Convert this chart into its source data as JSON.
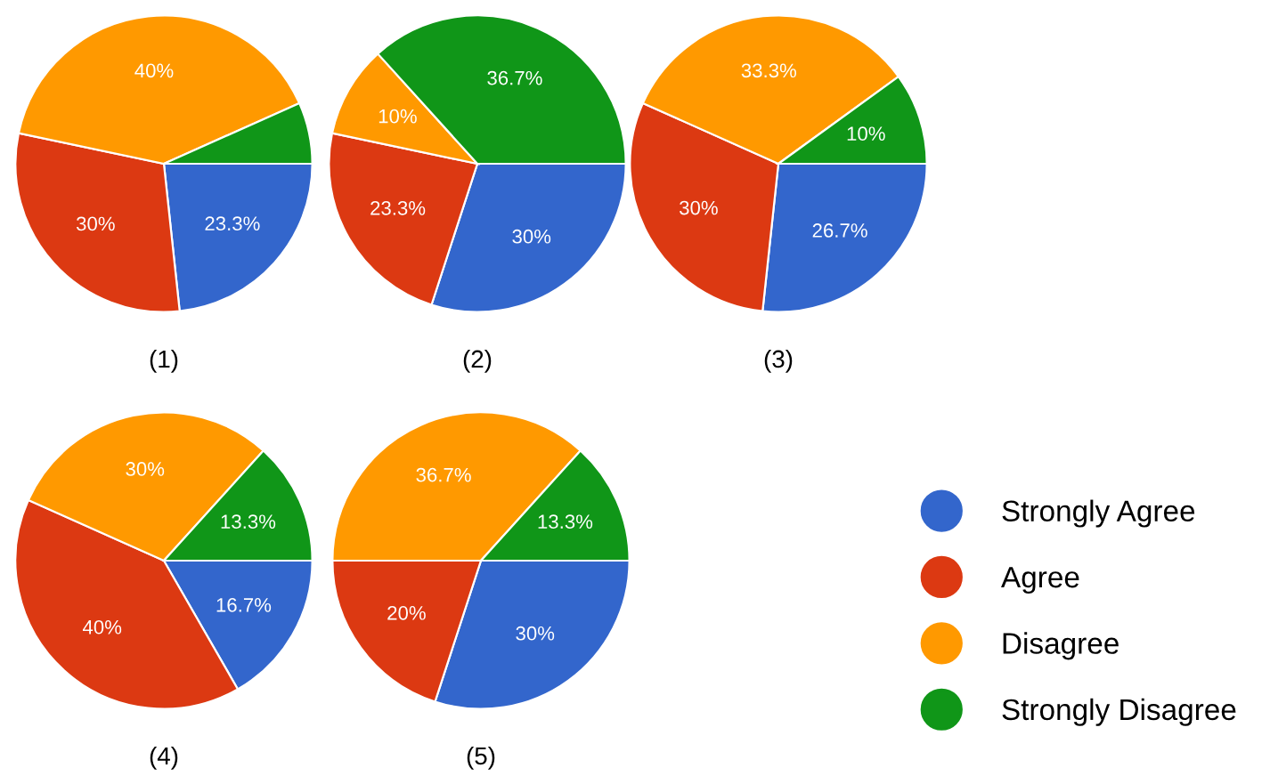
{
  "chart_data": [
    {
      "type": "pie",
      "xlabel": "(1)",
      "categories": [
        "Strongly Agree",
        "Agree",
        "Disagree",
        "Strongly Disagree"
      ],
      "values": [
        23.3,
        30,
        40,
        6.7
      ],
      "value_labels": [
        "23.3%",
        "30%",
        "40%",
        null
      ],
      "colors": [
        "#3366cc",
        "#dc3912",
        "#ff9900",
        "#109618"
      ],
      "legend": "bottom right"
    },
    {
      "type": "pie",
      "xlabel": "(2)",
      "categories": [
        null,
        null,
        null,
        null
      ],
      "values": [
        30,
        23.3,
        10,
        36.7
      ],
      "value_labels": [
        "30%",
        "23.3%",
        "10%",
        "36.7%"
      ],
      "colors": [
        "#3366cc",
        "#dc3912",
        "#ff9900",
        "#109618"
      ]
    },
    {
      "type": "pie",
      "xlabel": "(3)",
      "categories": [
        null,
        null,
        null,
        null
      ],
      "values": [
        26.7,
        30,
        33.3,
        10
      ],
      "value_labels": [
        "26.7%",
        "30%",
        "33.3%",
        "10%"
      ],
      "colors": [
        "#3366cc",
        "#dc3912",
        "#ff9900",
        "#109618"
      ]
    },
    {
      "type": "pie",
      "xlabel": "(4)",
      "categories": [
        null,
        null,
        null,
        null
      ],
      "values": [
        16.7,
        40,
        30,
        13.3
      ],
      "value_labels": [
        "16.7%",
        "40%",
        "30%",
        "13.3%"
      ],
      "colors": [
        "#3366cc",
        "#dc3912",
        "#ff9900",
        "#109618"
      ]
    },
    {
      "type": "pie",
      "xlabel": "(5)",
      "categories": [
        null,
        null,
        null,
        null
      ],
      "values": [
        30,
        20,
        36.7,
        13.3
      ],
      "value_labels": [
        "30%",
        "20%",
        "36.7%",
        "13.3%"
      ],
      "colors": [
        "#3366cc",
        "#dc3912",
        "#ff9900",
        "#109618"
      ]
    }
  ]
}
